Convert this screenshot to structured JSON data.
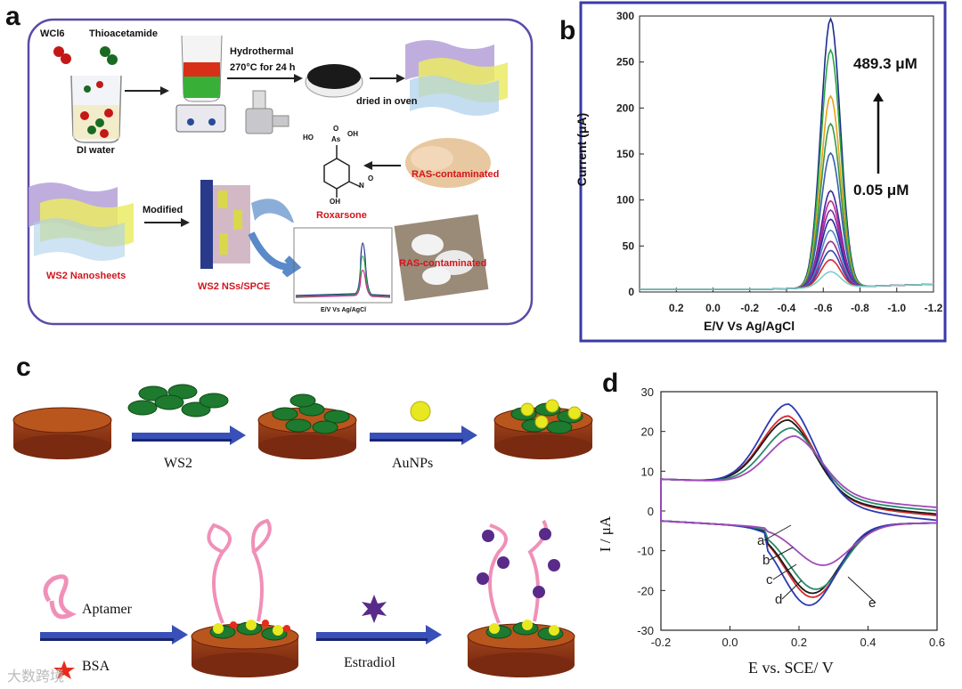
{
  "panel_a": {
    "letter": "a",
    "wcl6": "WCl6",
    "thioacetamide": "Thioacetamide",
    "di_water": "DI water",
    "hydrothermal": "Hydrothermal",
    "hydro_cond": "270°C for 24 h",
    "dried": "dried in oven",
    "ras_contaminated_1": "RAS-contaminated",
    "ras_contaminated_2": "RAS-contaminated",
    "roxarsone": "Roxarsone",
    "modified": "Modified",
    "ws2_nanosheets": "WS2 Nanosheets",
    "ws2_nss_spce": "WS2 NSs/SPCE",
    "mini_xlabel": "E/V Vs Ag/AgCl",
    "mini_ticks": [
      "0.2",
      "0.0",
      "-0.2",
      "-0.4",
      "-0.6",
      "-0.8",
      "-1.0"
    ],
    "chem_ho_top": "HO",
    "chem_oh_top": "OH",
    "chem_as": "As",
    "chem_o": "O",
    "chem_oh_bottom": "OH",
    "chem_n": "N",
    "chem_o2": "O"
  },
  "panel_b": {
    "letter": "b",
    "xlabel": "E/V Vs Ag/AgCl",
    "ylabel": "Current (μA)",
    "annot_high": "489.3 μM",
    "annot_low": "0.05 μM",
    "x_ticks": [
      "0.2",
      "0.0",
      "-0.2",
      "-0.4",
      "-0.6",
      "-0.8",
      "-1.0",
      "-1.2"
    ],
    "y_ticks": [
      "0",
      "50",
      "100",
      "150",
      "200",
      "250",
      "300"
    ]
  },
  "panel_c": {
    "letter": "c",
    "ws2": "WS2",
    "aunps": "AuNPs",
    "aptamer": "Aptamer",
    "bsa": "BSA",
    "estradiol": "Estradiol"
  },
  "panel_d": {
    "letter": "d",
    "xlabel": "E vs. SCE/ V",
    "ylabel": "I / μA",
    "x_ticks": [
      "-0.2",
      "0.0",
      "0.2",
      "0.4",
      "0.6"
    ],
    "y_ticks": [
      "30",
      "20",
      "10",
      "0",
      "-10",
      "-20",
      "-30"
    ],
    "curve_labels": [
      "a",
      "b",
      "c",
      "d",
      "e"
    ]
  },
  "watermark": "大数跨境",
  "chart_data": [
    {
      "type": "line",
      "xlabel": "E/V Vs Ag/AgCl",
      "ylabel": "Current (μA)",
      "xlim": [
        0.4,
        -1.2
      ],
      "ylim": [
        0,
        300
      ],
      "peak_potential": -0.64,
      "series": [
        {
          "color": "#1c2c8c",
          "peak": 292
        },
        {
          "color": "#2aa845",
          "peak": 258
        },
        {
          "color": "#e8a21c",
          "peak": 208
        },
        {
          "color": "#3a9a48",
          "peak": 178
        },
        {
          "color": "#3a5eb0",
          "peak": 146
        },
        {
          "color": "#3c2a9c",
          "peak": 105
        },
        {
          "color": "#c4288c",
          "peak": 94
        },
        {
          "color": "#8a2aa8",
          "peak": 84
        },
        {
          "color": "#2b2b9a",
          "peak": 74
        },
        {
          "color": "#4a8ac8",
          "peak": 62
        },
        {
          "color": "#a0288a",
          "peak": 50
        },
        {
          "color": "#3048b0",
          "peak": 40
        },
        {
          "color": "#d42a2a",
          "peak": 30
        },
        {
          "color": "#7ad0c8",
          "peak": 17
        }
      ]
    },
    {
      "type": "line",
      "xlabel": "E vs. SCE/ V",
      "ylabel": "I / μA",
      "xlim": [
        -0.2,
        0.6
      ],
      "ylim": [
        -30,
        30
      ],
      "series": [
        {
          "label": "a",
          "color": "#d42a2a",
          "ox_peak": [
            0.17,
            22
          ],
          "red_peak": [
            0.24,
            -23
          ]
        },
        {
          "label": "b",
          "color": "#1a1a1a",
          "ox_peak": [
            0.17,
            21
          ],
          "red_peak": [
            0.24,
            -22
          ]
        },
        {
          "label": "c",
          "color": "#2a8a6a",
          "ox_peak": [
            0.18,
            19
          ],
          "red_peak": [
            0.25,
            -21
          ]
        },
        {
          "label": "d",
          "color": "#2a3ab0",
          "ox_peak": [
            0.17,
            25
          ],
          "red_peak": [
            0.23,
            -25
          ]
        },
        {
          "label": "e",
          "color": "#a04aba",
          "ox_peak": [
            0.19,
            17
          ],
          "red_peak": [
            0.27,
            -15
          ]
        }
      ]
    }
  ]
}
